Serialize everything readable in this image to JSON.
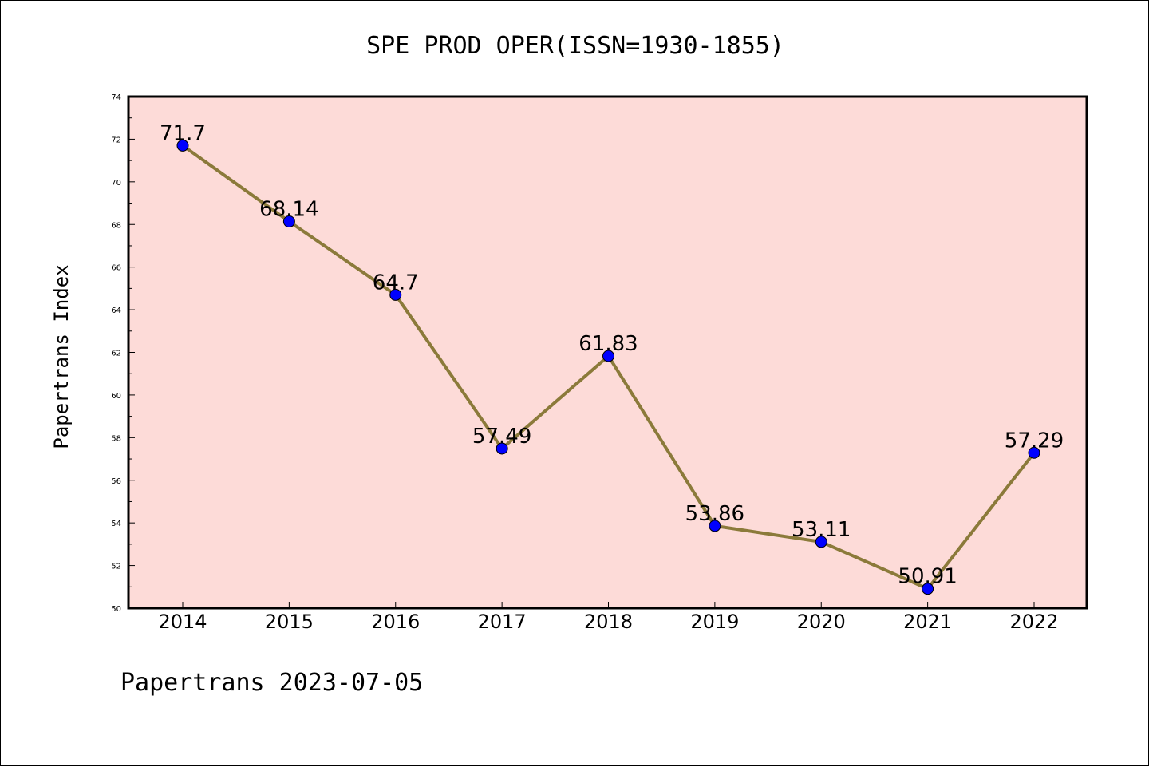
{
  "chart_data": {
    "type": "line",
    "title": "SPE PROD OPER(ISSN=1930-1855)",
    "xlabel": "",
    "ylabel": "Papertrans Index",
    "footer": "Papertrans 2023-07-05",
    "categories": [
      "2014",
      "2015",
      "2016",
      "2017",
      "2018",
      "2019",
      "2020",
      "2021",
      "2022"
    ],
    "values": [
      71.7,
      68.14,
      64.7,
      57.49,
      61.83,
      53.86,
      53.11,
      50.91,
      57.29
    ],
    "data_labels": [
      "71.7",
      "68.14",
      "64.7",
      "57.49",
      "61.83",
      "53.86",
      "53.11",
      "50.91",
      "57.29"
    ],
    "ylim": [
      50,
      74
    ],
    "yticks": [
      50,
      52,
      54,
      56,
      58,
      60,
      62,
      64,
      66,
      68,
      70,
      72,
      74
    ],
    "grid": false,
    "legend": "none",
    "colors": {
      "plot_background": "#fddbd8",
      "line": "#8b7a3a",
      "marker": "#0000ff"
    }
  }
}
